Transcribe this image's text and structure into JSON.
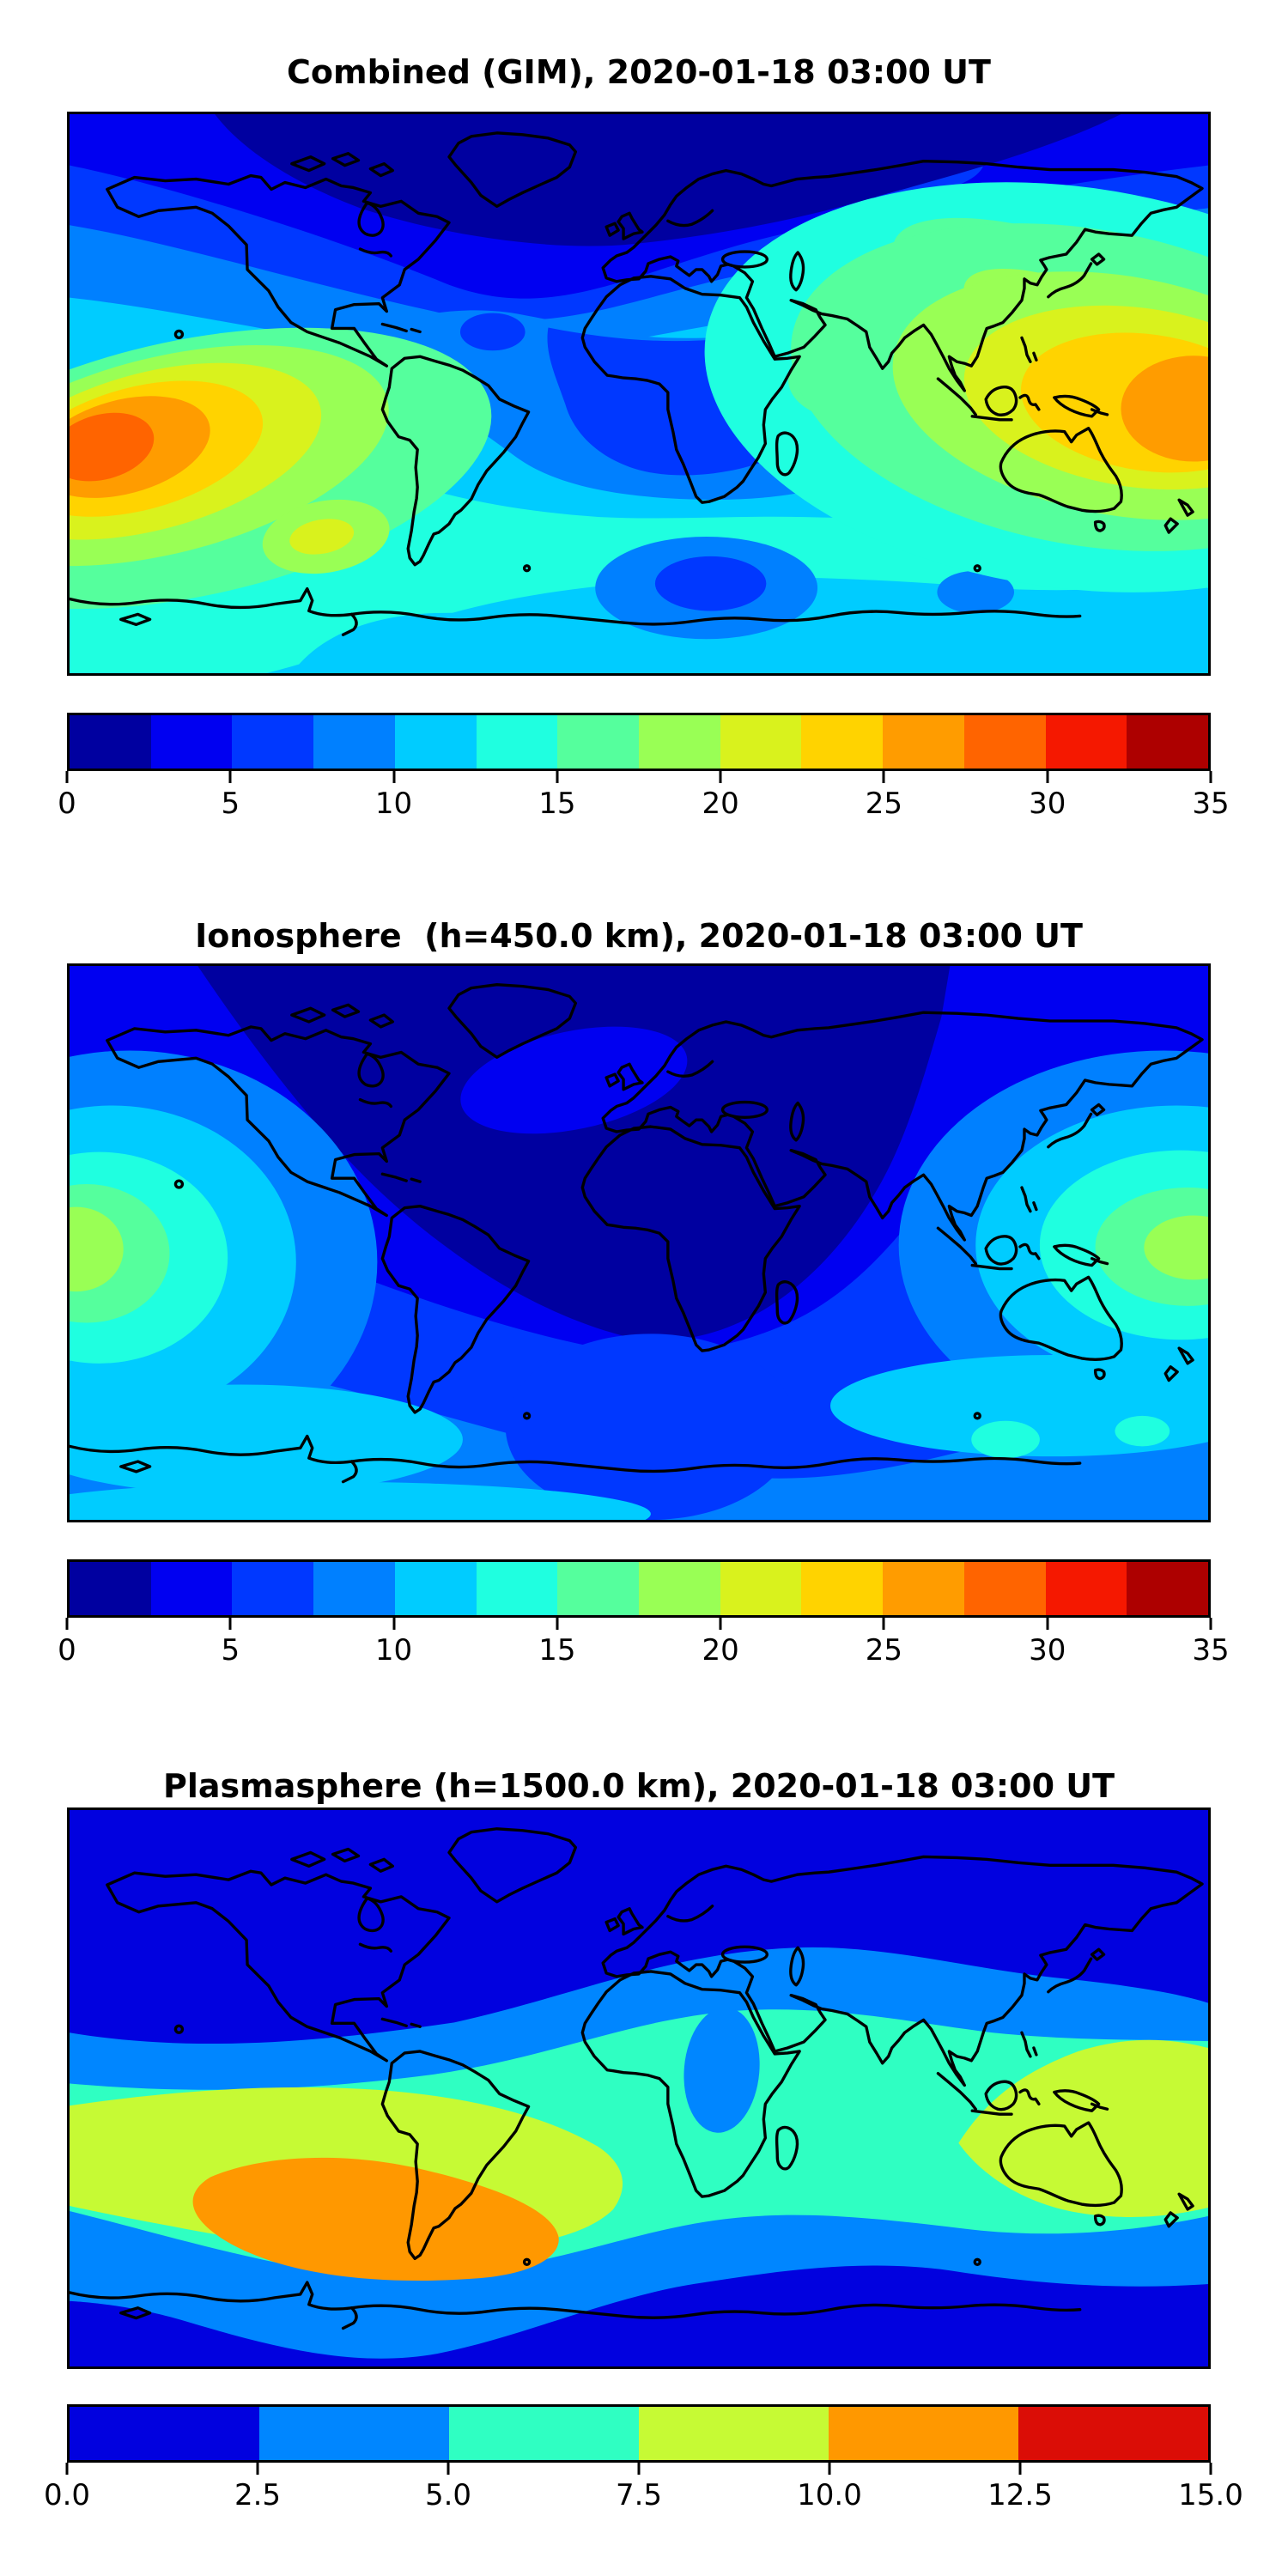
{
  "panels": [
    {
      "id": "combined",
      "title": "Combined (GIM), 2020-01-18 03:00 UT",
      "colorbar": {
        "tick_labels": [
          "0",
          "5",
          "10",
          "15",
          "20",
          "25",
          "30",
          "35"
        ],
        "min": 0,
        "max": 35,
        "segment_step": 2.5,
        "colors": [
          "#0000a0",
          "#0000f1",
          "#0038ff",
          "#0080ff",
          "#00ccff",
          "#1fffe0",
          "#55ff9d",
          "#99ff55",
          "#d9f21d",
          "#ffd300",
          "#ff9c00",
          "#ff6400",
          "#f51800",
          "#ad0000"
        ]
      }
    },
    {
      "id": "ionosphere",
      "title": "Ionosphere  (h=450.0 km), 2020-01-18 03:00 UT",
      "colorbar": {
        "tick_labels": [
          "0",
          "5",
          "10",
          "15",
          "20",
          "25",
          "30",
          "35"
        ],
        "min": 0,
        "max": 35,
        "segment_step": 2.5,
        "colors": [
          "#0000a0",
          "#0000f1",
          "#0038ff",
          "#0080ff",
          "#00ccff",
          "#1fffe0",
          "#55ff9d",
          "#99ff55",
          "#d9f21d",
          "#ffd300",
          "#ff9c00",
          "#ff6400",
          "#f51800",
          "#ad0000"
        ]
      }
    },
    {
      "id": "plasmasphere",
      "title": "Plasmasphere (h=1500.0 km), 2020-01-18 03:00 UT",
      "colorbar": {
        "tick_labels": [
          "0.0",
          "2.5",
          "5.0",
          "7.5",
          "10.0",
          "12.5",
          "15.0"
        ],
        "min": 0,
        "max": 15,
        "segment_step": 2.5,
        "colors": [
          "#0101df",
          "#0086ff",
          "#2fffc2",
          "#c6fa34",
          "#ff9800",
          "#db0d06"
        ]
      }
    }
  ],
  "chart_data": [
    {
      "type": "heatmap",
      "subtype": "filled-contour world map with coastlines",
      "title": "Combined (GIM), 2020-01-18 03:00 UT",
      "projection": "equirectangular",
      "xlabel": "",
      "ylabel": "",
      "lon_range": [
        -180,
        180
      ],
      "lat_range": [
        -90,
        90
      ],
      "grid": false,
      "colorbar": {
        "orientation": "horizontal",
        "min": 0,
        "max": 35,
        "tick_labels": [
          "0",
          "5",
          "10",
          "15",
          "20",
          "25",
          "30",
          "35"
        ],
        "n_segments": 14,
        "segment_step": 2.5
      },
      "features": [
        {
          "region": "central Pacific hotspot at left/dateline edge",
          "lon": -168,
          "lat": -14,
          "value": "27.5-30 (orange-red core)"
        },
        {
          "region": "west Pacific / Melanesia hotspot at right edge",
          "lon": 172,
          "lat": -10,
          "value": "25-27.5 (orange)"
        },
        {
          "region": "maritime continent Indonesia-Philippine Sea",
          "lon": 140,
          "lat": -5,
          "value": "22.5-25 (gold)"
        },
        {
          "region": "East Asia / Japan band",
          "lon": 125,
          "lat": 25,
          "value": "15-20 (green)"
        },
        {
          "region": "India",
          "lon": 77,
          "lat": 15,
          "value": "15-17.5"
        },
        {
          "region": "Arctic cap over N Canada, Greenland, N Eurasia",
          "lon": 0,
          "lat": 70,
          "value": "0-2.5 (minimum)"
        },
        {
          "region": "equatorial Atlantic and Africa low column",
          "lon": 10,
          "lat": -5,
          "value": "5-7.5"
        },
        {
          "region": "Caribbean local low",
          "lon": -72,
          "lat": 18,
          "value": "5-7.5"
        },
        {
          "region": "southern mid-latitude band",
          "lon": 0,
          "lat": -45,
          "value": "12.5-15"
        },
        {
          "region": "south Atlantic/Indian low near Antarctica",
          "lon": 22,
          "lat": -58,
          "value": "5-7.5"
        },
        {
          "region": "SE Pacific secondary spot",
          "lon": -100,
          "lat": -45,
          "value": "17.5-20"
        }
      ]
    },
    {
      "type": "heatmap",
      "subtype": "filled-contour world map with coastlines",
      "title": "Ionosphere  (h=450.0 km), 2020-01-18 03:00 UT",
      "projection": "equirectangular",
      "xlabel": "",
      "ylabel": "",
      "lon_range": [
        -180,
        180
      ],
      "lat_range": [
        -90,
        90
      ],
      "grid": false,
      "colorbar": {
        "orientation": "horizontal",
        "min": 0,
        "max": 35,
        "tick_labels": [
          "0",
          "5",
          "10",
          "15",
          "20",
          "25",
          "30",
          "35"
        ],
        "n_segments": 14,
        "segment_step": 2.5
      },
      "features": [
        {
          "region": "vast night-side minimum over Americas, Atlantic, Europe, Africa",
          "lon": -30,
          "lat": 15,
          "value": "0-2.5"
        },
        {
          "region": "local lighter patch over N Atlantic near Iceland/UK",
          "lon": -20,
          "lat": 53,
          "value": "2.5-5"
        },
        {
          "region": "central Pacific hotspot at left edge",
          "lon": -178,
          "lat": -12,
          "value": "17.5-20 (yellow-green core)"
        },
        {
          "region": "west Pacific hotspot near New Guinea",
          "lon": 174,
          "lat": -8,
          "value": "17.5-20 (yellow-green core)"
        },
        {
          "region": "East Asia coastal band",
          "lon": 125,
          "lat": 25,
          "value": "7.5-10"
        },
        {
          "region": "southern ocean band",
          "lon": -60,
          "lat": -52,
          "value": "10-12.5"
        },
        {
          "region": "Antarctic coast cyan strip",
          "lon": -90,
          "lat": -72,
          "value": "10-12.5"
        }
      ]
    },
    {
      "type": "heatmap",
      "subtype": "filled-contour world map with coastlines",
      "title": "Plasmasphere (h=1500.0 km), 2020-01-18 03:00 UT",
      "projection": "equirectangular",
      "xlabel": "",
      "ylabel": "",
      "lon_range": [
        -180,
        180
      ],
      "lat_range": [
        -90,
        90
      ],
      "grid": false,
      "colorbar": {
        "orientation": "horizontal",
        "min": 0,
        "max": 15,
        "tick_labels": [
          "0.0",
          "2.5",
          "5.0",
          "7.5",
          "10.0",
          "12.5",
          "15.0"
        ],
        "n_segments": 6,
        "segment_step": 2.5
      },
      "features": [
        {
          "region": "equatorial plasmaspheric band maximum over SE Pacific / South America",
          "lon": -95,
          "lat": -20,
          "value": "10-12.5 (orange)"
        },
        {
          "region": "yellow-green band west lobe (Pacific to S America)",
          "lon": -140,
          "lat": -15,
          "value": "7.5-10"
        },
        {
          "region": "yellow-green band east lobe (India, SE Asia, W Pacific)",
          "lon": 130,
          "lat": 0,
          "value": "7.5-10"
        },
        {
          "region": "turquoise band across mid/low latitudes",
          "lon": 20,
          "lat": 10,
          "value": "5-7.5"
        },
        {
          "region": "local low ellipse over central Africa",
          "lon": 26,
          "lat": 6,
          "value": "2.5-5 (blue)"
        },
        {
          "region": "northern wavy band",
          "lon": 0,
          "lat": 42,
          "value": "2.5-5"
        },
        {
          "region": "southern wavy band",
          "lon": 60,
          "lat": -50,
          "value": "2.5-5"
        },
        {
          "region": "high-latitude background",
          "lon": 0,
          "lat": 75,
          "value": "0-2.5 (minimum)"
        }
      ]
    }
  ]
}
